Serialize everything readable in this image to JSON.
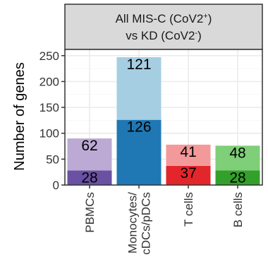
{
  "chart_data": {
    "type": "bar",
    "stacked": true,
    "facet_title_line1": "All MIS-C (CoV2",
    "facet_title_line1_sup": "+",
    "facet_title_line1_end": ")",
    "facet_title_line2": "vs KD (CoV2",
    "facet_title_line2_sup": "-",
    "facet_title_line2_end": ")",
    "xlabel": "",
    "ylabel": "Number of genes",
    "ylim": [
      0,
      262
    ],
    "yticks": [
      0,
      50,
      100,
      150,
      200,
      250
    ],
    "grid": true,
    "categories": [
      {
        "lines": [
          "PBMCs"
        ]
      },
      {
        "lines": [
          "Monocytes/",
          "cDCs/pDCs"
        ]
      },
      {
        "lines": [
          "T cells"
        ]
      },
      {
        "lines": [
          "B cells"
        ]
      }
    ],
    "bars": [
      {
        "bottom": 28,
        "top": 62,
        "bottom_label": "28",
        "top_label": "62",
        "bottom_color": "#6a51a3",
        "top_color": "#bcaad4"
      },
      {
        "bottom": 126,
        "top": 121,
        "bottom_label": "126",
        "top_label": "121",
        "bottom_color": "#1f78b4",
        "top_color": "#a6cee3"
      },
      {
        "bottom": 37,
        "top": 41,
        "bottom_label": "37",
        "top_label": "41",
        "bottom_color": "#e3262b",
        "top_color": "#f4999a"
      },
      {
        "bottom": 28,
        "top": 48,
        "bottom_label": "28",
        "top_label": "48",
        "bottom_color": "#33a02c",
        "top_color": "#7fce78"
      }
    ],
    "colors": {
      "strip_fill": "#d9d9d9",
      "panel_border": "#333333",
      "grid_major": "#ebebeb",
      "grid_minor": "#f5f5f5"
    }
  }
}
